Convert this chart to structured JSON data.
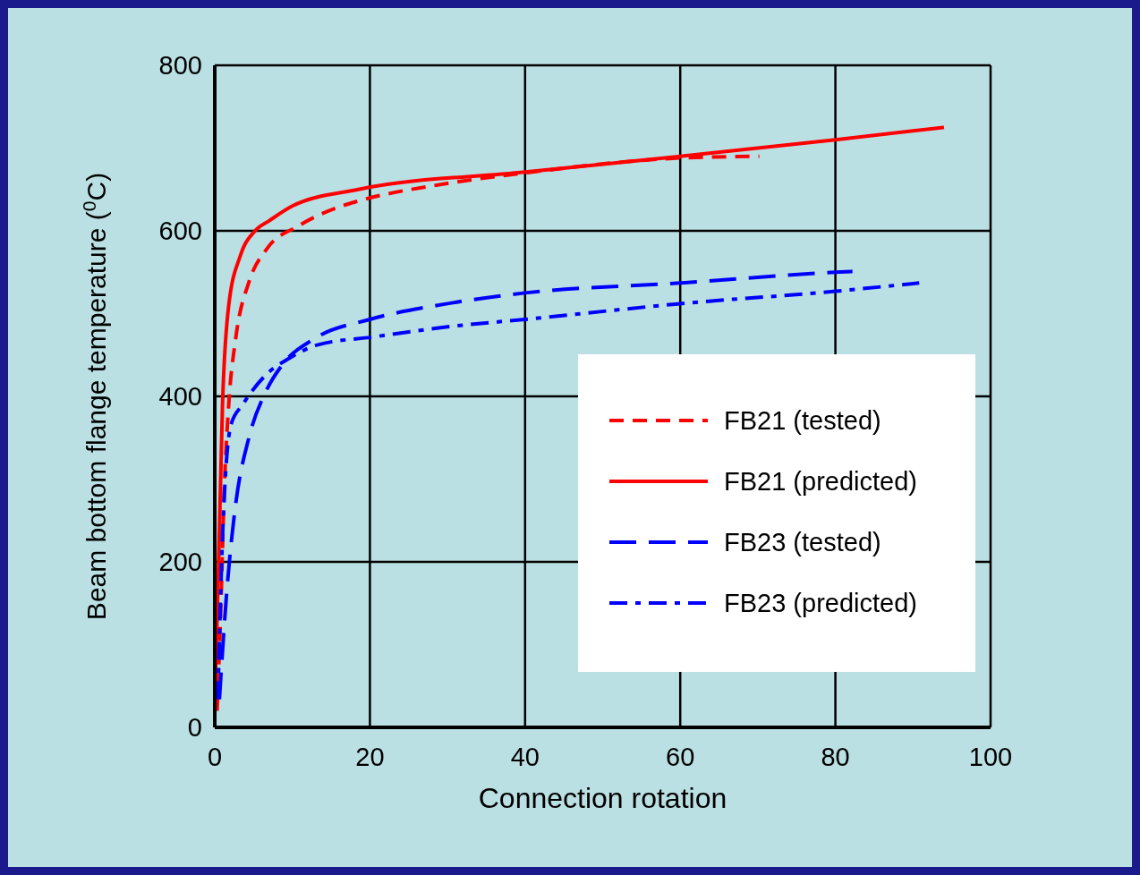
{
  "chart_data": {
    "type": "line",
    "xlabel": "Connection rotation",
    "ylabel": "Beam bottom flange temperature ($^{0}$C)",
    "xlim": [
      0,
      100
    ],
    "ylim": [
      0,
      800
    ],
    "xticks": [
      0,
      20,
      40,
      60,
      80,
      100
    ],
    "yticks": [
      0,
      200,
      400,
      600,
      800
    ],
    "grid": true,
    "legend": "right",
    "marker": "none",
    "series": [
      {
        "name": "FB21 (tested)",
        "color": "#ff0000",
        "line_style": "dashed",
        "x": [
          0.3,
          0.8,
          1.2,
          1.8,
          2.7,
          4.4,
          6.7,
          10.8,
          16.4,
          18.5,
          29.8,
          40,
          60,
          70.2
        ],
        "values": [
          20,
          150,
          280,
          390,
          470,
          538,
          578,
          606,
          630,
          636,
          657,
          670,
          688,
          690
        ]
      },
      {
        "name": "FB21 (predicted)",
        "color": "#ff0000",
        "line_style": "solid",
        "x": [
          0,
          0.5,
          1,
          1.8,
          3.3,
          5.2,
          7,
          10,
          18.5,
          40,
          60,
          80,
          94
        ],
        "values": [
          30,
          200,
          390,
          510,
          570,
          600,
          612,
          630,
          650,
          671,
          690,
          710,
          725
        ]
      },
      {
        "name": "FB23 (tested)",
        "color": "#0000ff",
        "line_style": "longdash",
        "x": [
          0.6,
          1.6,
          2.7,
          4.4,
          6.6,
          8.7,
          12.9,
          20,
          30,
          40,
          60,
          80,
          82.2
        ],
        "values": [
          34,
          170,
          270,
          350,
          406,
          438,
          470,
          493,
          512,
          525,
          537,
          550,
          551
        ]
      },
      {
        "name": "FB23 (predicted)",
        "color": "#0000ff",
        "line_style": "dashdot",
        "x": [
          0.4,
          1,
          2.1,
          3.6,
          6.6,
          9.6,
          13.2,
          20.6,
          30,
          40,
          60,
          80,
          90.8
        ],
        "values": [
          34,
          230,
          366,
          390,
          426,
          446,
          462,
          472,
          484,
          493,
          512,
          527,
          537
        ]
      }
    ]
  }
}
